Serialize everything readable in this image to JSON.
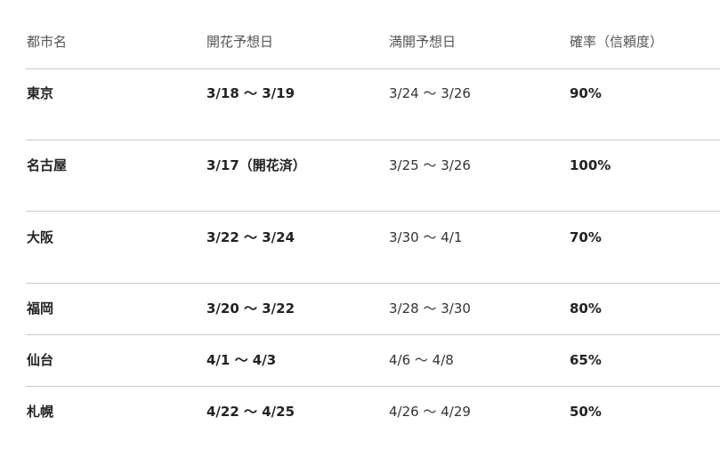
{
  "table": {
    "headers": [
      "都市名",
      "開花予想日",
      "満開予想日",
      "確率（信頼度）"
    ],
    "rows": [
      [
        "東京",
        "3/18 〜 3/19",
        "3/24 〜 3/26",
        "90%"
      ],
      [
        "名古屋",
        "3/17（開花済）",
        "3/25 〜 3/26",
        "100%"
      ],
      [
        "大阪",
        "3/22 〜 3/24",
        "3/30 〜 4/1",
        "70%"
      ],
      [
        "福岡",
        "3/20 〜 3/22",
        "3/28 〜 3/30",
        "80%"
      ],
      [
        "仙台",
        "4/1 〜 4/3",
        "4/6 〜 4/8",
        "65%"
      ],
      [
        "札幌",
        "4/22 〜 4/25",
        "4/26 〜 4/29",
        "50%"
      ]
    ]
  }
}
